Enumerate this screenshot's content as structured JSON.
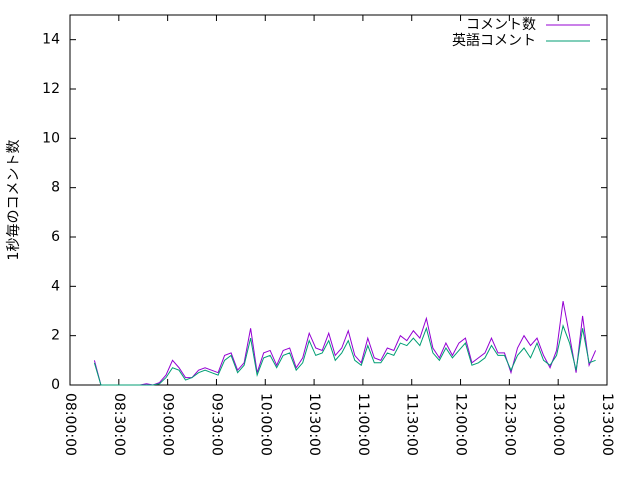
{
  "chart_data": {
    "type": "line",
    "ylabel": "1秒毎のコメント数",
    "x": [
      "08:15:00",
      "08:19:00",
      "08:23:00",
      "08:27:00",
      "08:31:00",
      "08:35:00",
      "08:39:00",
      "08:43:00",
      "08:47:00",
      "08:51:00",
      "08:55:00",
      "08:59:00",
      "09:03:00",
      "09:07:00",
      "09:11:00",
      "09:15:00",
      "09:19:00",
      "09:23:00",
      "09:27:00",
      "09:31:00",
      "09:35:00",
      "09:39:00",
      "09:43:00",
      "09:47:00",
      "09:51:00",
      "09:55:00",
      "09:59:00",
      "10:03:00",
      "10:07:00",
      "10:11:00",
      "10:15:00",
      "10:19:00",
      "10:23:00",
      "10:27:00",
      "10:31:00",
      "10:35:00",
      "10:39:00",
      "10:43:00",
      "10:47:00",
      "10:51:00",
      "10:55:00",
      "10:59:00",
      "11:03:00",
      "11:07:00",
      "11:11:00",
      "11:15:00",
      "11:19:00",
      "11:23:00",
      "11:27:00",
      "11:31:00",
      "11:35:00",
      "11:39:00",
      "11:43:00",
      "11:47:00",
      "11:51:00",
      "11:55:00",
      "11:59:00",
      "12:03:00",
      "12:07:00",
      "12:11:00",
      "12:15:00",
      "12:19:00",
      "12:23:00",
      "12:27:00",
      "12:31:00",
      "12:35:00",
      "12:39:00",
      "12:43:00",
      "12:47:00",
      "12:51:00",
      "12:55:00",
      "12:59:00",
      "13:03:00",
      "13:07:00",
      "13:11:00",
      "13:15:00",
      "13:19:00",
      "13:23:00"
    ],
    "series": [
      {
        "name": "コメント数",
        "color": "#9400d3",
        "values": [
          1.0,
          0,
          0,
          0,
          0,
          0,
          0,
          0,
          0.05,
          0,
          0.1,
          0.4,
          1.0,
          0.7,
          0.3,
          0.3,
          0.6,
          0.7,
          0.6,
          0.5,
          1.2,
          1.3,
          0.6,
          0.9,
          2.3,
          0.5,
          1.3,
          1.4,
          0.8,
          1.4,
          1.5,
          0.7,
          1.1,
          2.1,
          1.5,
          1.4,
          2.1,
          1.2,
          1.5,
          2.2,
          1.2,
          0.9,
          1.9,
          1.1,
          1.0,
          1.5,
          1.4,
          2.0,
          1.8,
          2.2,
          1.9,
          2.7,
          1.5,
          1.1,
          1.7,
          1.2,
          1.7,
          1.9,
          0.9,
          1.1,
          1.3,
          1.9,
          1.3,
          1.3,
          0.5,
          1.5,
          2.0,
          1.6,
          1.9,
          1.2,
          0.7,
          1.4,
          3.4,
          2.0,
          0.5,
          2.8,
          0.8,
          1.4
        ]
      },
      {
        "name": "英語コメント",
        "color": "#009e73",
        "values": [
          0.9,
          0,
          0,
          0,
          0,
          0,
          0,
          0,
          0,
          0,
          0.05,
          0.3,
          0.7,
          0.6,
          0.2,
          0.3,
          0.5,
          0.6,
          0.5,
          0.4,
          1.0,
          1.2,
          0.5,
          0.8,
          1.9,
          0.4,
          1.1,
          1.2,
          0.7,
          1.2,
          1.3,
          0.6,
          0.9,
          1.8,
          1.2,
          1.3,
          1.8,
          1.0,
          1.3,
          1.8,
          1.0,
          0.8,
          1.6,
          0.9,
          0.9,
          1.3,
          1.2,
          1.7,
          1.6,
          1.9,
          1.6,
          2.3,
          1.3,
          1.0,
          1.5,
          1.1,
          1.4,
          1.7,
          0.8,
          0.9,
          1.1,
          1.6,
          1.2,
          1.2,
          0.6,
          1.2,
          1.5,
          1.1,
          1.7,
          1.0,
          0.8,
          1.2,
          2.4,
          1.7,
          0.6,
          2.3,
          0.9,
          1.0
        ]
      }
    ],
    "xlim": [
      "08:00:00",
      "13:30:00"
    ],
    "xticks": [
      "08:00:00",
      "08:30:00",
      "09:00:00",
      "09:30:00",
      "10:00:00",
      "10:30:00",
      "11:00:00",
      "11:30:00",
      "12:00:00",
      "12:30:00",
      "13:00:00",
      "13:30:00"
    ],
    "ylim": [
      0,
      15
    ],
    "yticks": [
      0,
      2,
      4,
      6,
      8,
      10,
      12,
      14
    ],
    "legend": "top-right"
  }
}
